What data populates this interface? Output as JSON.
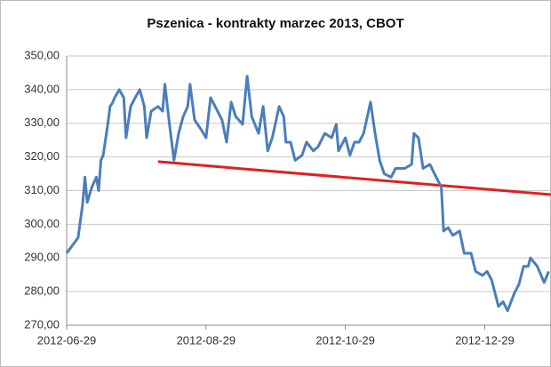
{
  "chart_data": {
    "type": "line",
    "title": "Pszenica - kontrakty marzec 2013, CBOT",
    "x": [
      "2012-06-29",
      "2012-07-04",
      "2012-07-06",
      "2012-07-07",
      "2012-07-08",
      "2012-07-10",
      "2012-07-12",
      "2012-07-13",
      "2012-07-14",
      "2012-07-15",
      "2012-07-17",
      "2012-07-18",
      "2012-07-19",
      "2012-07-20",
      "2012-07-22",
      "2012-07-24",
      "2012-07-25",
      "2012-07-27",
      "2012-07-29",
      "2012-07-31",
      "2012-08-02",
      "2012-08-03",
      "2012-08-05",
      "2012-08-08",
      "2012-08-10",
      "2012-08-11",
      "2012-08-13",
      "2012-08-15",
      "2012-08-17",
      "2012-08-19",
      "2012-08-21",
      "2012-08-22",
      "2012-08-24",
      "2012-08-27",
      "2012-08-29",
      "2012-08-31",
      "2012-09-02",
      "2012-09-05",
      "2012-09-07",
      "2012-09-09",
      "2012-09-11",
      "2012-09-14",
      "2012-09-16",
      "2012-09-18",
      "2012-09-21",
      "2012-09-23",
      "2012-09-25",
      "2012-09-27",
      "2012-09-30",
      "2012-10-02",
      "2012-10-03",
      "2012-10-05",
      "2012-10-07",
      "2012-10-10",
      "2012-10-12",
      "2012-10-15",
      "2012-10-17",
      "2012-10-20",
      "2012-10-23",
      "2012-10-25",
      "2012-10-26",
      "2012-10-29",
      "2012-10-31",
      "2012-11-02",
      "2012-11-04",
      "2012-11-06",
      "2012-11-09",
      "2012-11-11",
      "2012-11-13",
      "2012-11-15",
      "2012-11-18",
      "2012-11-20",
      "2012-11-24",
      "2012-11-27",
      "2012-11-28",
      "2012-11-30",
      "2012-12-02",
      "2012-12-05",
      "2012-12-07",
      "2012-12-10",
      "2012-12-11",
      "2012-12-13",
      "2012-12-15",
      "2012-12-18",
      "2012-12-20",
      "2012-12-23",
      "2012-12-25",
      "2012-12-28",
      "2012-12-30",
      "2013-01-01",
      "2013-01-04",
      "2013-01-06",
      "2013-01-08",
      "2013-01-11",
      "2013-01-13",
      "2013-01-15",
      "2013-01-17",
      "2013-01-18",
      "2013-01-21",
      "2013-01-24",
      "2013-01-26"
    ],
    "series": [
      {
        "color": "#4a7ebb",
        "values": [
          291.4,
          296,
          306,
          314,
          306.5,
          311,
          314,
          310,
          319,
          320.5,
          329.7,
          335,
          336,
          337.6,
          340,
          337.6,
          325.7,
          335,
          337.6,
          340,
          335,
          325.7,
          333.6,
          335,
          333.6,
          341.6,
          329.7,
          319,
          327,
          332,
          335,
          341.6,
          331,
          328,
          325.7,
          337.6,
          335,
          331,
          324.4,
          336.3,
          332,
          329.7,
          344,
          332,
          327,
          335,
          321.8,
          325.7,
          335,
          332,
          324.4,
          324.4,
          319,
          320.5,
          324.4,
          321.8,
          323,
          327,
          325.7,
          329.7,
          321.8,
          325.7,
          320.5,
          324.4,
          324.4,
          327,
          336.3,
          327,
          319,
          315,
          314,
          316.6,
          316.6,
          317.8,
          327,
          325.7,
          316.6,
          317.8,
          315,
          311,
          298,
          299,
          296.7,
          298,
          291.4,
          291.4,
          286,
          284.8,
          286,
          283.5,
          275.6,
          277,
          274.3,
          279.6,
          282.2,
          287.5,
          287.5,
          290,
          287.5,
          282.7,
          286
        ]
      }
    ],
    "trend": {
      "color": "#e02020",
      "x": [
        "2012-08-08",
        "2013-01-27"
      ],
      "values": [
        318.6,
        308.8
      ]
    },
    "xlim": [
      "2012-06-29",
      "2013-01-27"
    ],
    "xticks": [
      "2012-06-29",
      "2012-08-29",
      "2012-10-29",
      "2012-12-29"
    ],
    "ylim": [
      270,
      350
    ],
    "yticks": [
      {
        "value": 270,
        "label": "270,00"
      },
      {
        "value": 280,
        "label": "280,00"
      },
      {
        "value": 290,
        "label": "290,00"
      },
      {
        "value": 300,
        "label": "300,00"
      },
      {
        "value": 310,
        "label": "310,00"
      },
      {
        "value": 320,
        "label": "320,00"
      },
      {
        "value": 330,
        "label": "330,00"
      },
      {
        "value": 340,
        "label": "340,00"
      },
      {
        "value": 350,
        "label": "350,00"
      }
    ],
    "grid": true
  }
}
